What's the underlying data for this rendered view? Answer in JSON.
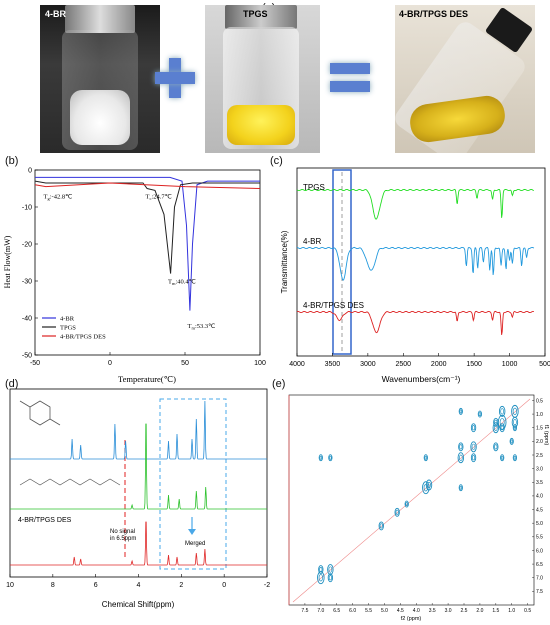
{
  "panel_a": {
    "tag": "(a)",
    "photos": [
      {
        "label": "4-BR"
      },
      {
        "label": "TPGS"
      },
      {
        "label": "4-BR/TPGS DES"
      }
    ],
    "plus_symbol": "+",
    "equals_symbol": "="
  },
  "panel_b": {
    "tag": "(b)",
    "colors": {
      "4-BR": "#3333dd",
      "TPGS": "#222222",
      "DES": "#dd2222"
    },
    "annotations": [
      {
        "text": "T",
        "sub": "g",
        "rest": ":-42.8℃",
        "x": -43,
        "y": -5
      },
      {
        "text": "T",
        "sub": "c",
        "rest": ":24.7℃",
        "x": 25,
        "y": -5
      },
      {
        "text": "T",
        "sub": "m",
        "rest": ":40.4℃",
        "x": 40,
        "y": -28
      },
      {
        "text": "T",
        "sub": "m",
        "rest": ":53.3℃",
        "x": 53,
        "y": -40
      }
    ]
  },
  "panel_c": {
    "tag": "(c)",
    "labels": [
      "TPGS",
      "4-BR",
      "4-BR/TPGS DES"
    ],
    "colors": [
      "#22dd22",
      "#2299dd",
      "#dd2222"
    ]
  },
  "panel_d": {
    "tag": "(d)",
    "annotation_no_signal": "No signal\nin 6.5ppm",
    "annotation_merged": "Merged",
    "label_des": "4-BR/TPGS DES"
  },
  "panel_e": {
    "tag": "(e)"
  },
  "chart_data": [
    {
      "type": "line",
      "title": "",
      "xlabel": "Temperature(℃)",
      "ylabel": "Heat Flow(mW)",
      "xlim": [
        -50,
        100
      ],
      "ylim": [
        -50,
        0
      ],
      "x_ticks": [
        -50,
        0,
        50,
        100
      ],
      "y_ticks": [
        0,
        -10,
        -20,
        -30,
        -40,
        -50
      ],
      "legend_position": "bottom-left",
      "series": [
        {
          "name": "4-BR",
          "x": [
            -50,
            0,
            40,
            48,
            51,
            53.3,
            55,
            58,
            65,
            100
          ],
          "y": [
            -2,
            -2,
            -2,
            -3,
            -15,
            -38,
            -20,
            -4,
            -3,
            -3
          ]
        },
        {
          "name": "TPGS",
          "x": [
            -50,
            -42.8,
            0,
            22,
            24.7,
            30,
            36,
            40.4,
            43,
            47,
            55,
            100
          ],
          "y": [
            -3,
            -3.5,
            -3.5,
            -3.5,
            -5,
            -5.5,
            -12,
            -28,
            -10,
            -4,
            -3.5,
            -3.5
          ]
        },
        {
          "name": "4-BR/TPGS DES",
          "x": [
            -50,
            -42.8,
            0,
            50,
            100
          ],
          "y": [
            -4,
            -4.5,
            -3.5,
            -4.5,
            -5
          ]
        }
      ]
    },
    {
      "type": "line",
      "title": "",
      "xlabel": "Wavenumbers(cm⁻¹)",
      "ylabel": "Transmittance(%)",
      "xlim": [
        4000,
        500
      ],
      "x_ticks": [
        4000,
        3500,
        3000,
        2500,
        2000,
        1500,
        1000,
        500
      ],
      "series": [
        {
          "name": "TPGS"
        },
        {
          "name": "4-BR"
        },
        {
          "name": "4-BR/TPGS DES"
        }
      ]
    },
    {
      "type": "line",
      "title": "",
      "xlabel": "Chemical Shift(ppm)",
      "ylabel": "",
      "xlim": [
        10,
        -2
      ],
      "x_ticks": [
        10,
        8,
        6,
        4,
        2,
        0,
        -2
      ]
    },
    {
      "type": "heatmap",
      "title": "",
      "xlabel": "f2 (ppm)",
      "ylabel": "f1 (ppm)",
      "x_ticks": [
        7.5,
        7.0,
        6.5,
        6.0,
        5.5,
        5.0,
        4.5,
        4.0,
        3.5,
        3.0,
        2.5,
        2.0,
        1.5,
        1.0,
        0.5
      ],
      "y_ticks": [
        0.5,
        1.0,
        1.5,
        2.0,
        2.5,
        3.0,
        3.5,
        4.0,
        4.5,
        5.0,
        5.5,
        6.0,
        6.5,
        7.0,
        7.5
      ]
    }
  ]
}
